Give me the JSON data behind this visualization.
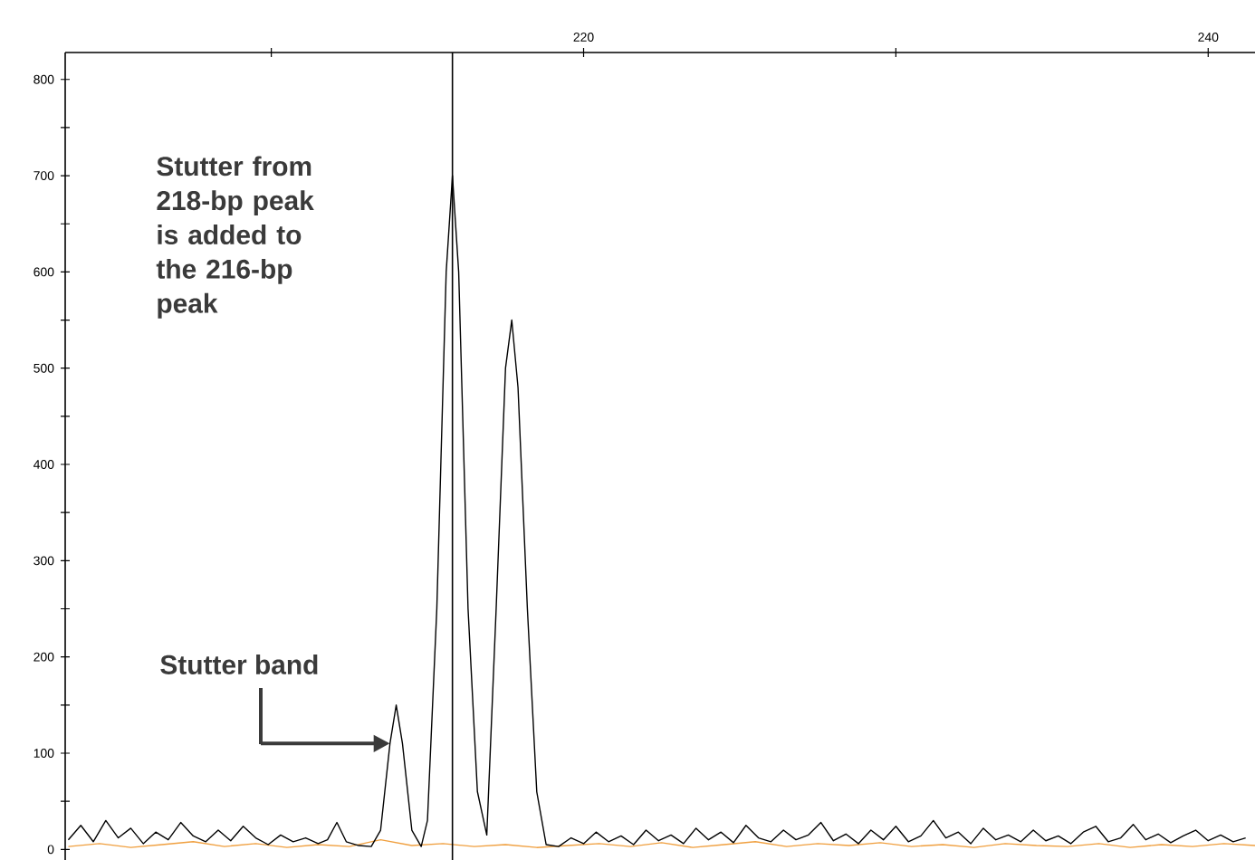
{
  "chart_data": {
    "type": "line",
    "xlim": [
      203.4,
      241.5
    ],
    "ylim": [
      -11,
      828
    ],
    "xticks": [
      {
        "value": 210,
        "label": null
      },
      220,
      {
        "value": 230,
        "label": null
      },
      240
    ],
    "yticks": [
      0,
      {
        "value": 50,
        "label": null
      },
      100,
      {
        "value": 150,
        "label": null
      },
      200,
      {
        "value": 250,
        "label": null
      },
      300,
      {
        "value": 350,
        "label": null
      },
      400,
      {
        "value": 450,
        "label": null
      },
      500,
      {
        "value": 550,
        "label": null
      },
      600,
      {
        "value": 650,
        "label": null
      },
      700,
      {
        "value": 750,
        "label": null
      },
      800
    ],
    "grid": false,
    "marker": "none",
    "line_style": "solid",
    "ref_lines": [
      {
        "axis": "x",
        "value": 215.8,
        "color": "#000000"
      }
    ],
    "annotations": [
      "Stutter from 218-bp peak is added to the 216-bp peak",
      {
        "text": "Stutter band",
        "x": 213.8,
        "y": 110
      }
    ],
    "series": [
      {
        "color": "#f0a040",
        "x": [
          203.5,
          204.5,
          205.5,
          206.5,
          207.5,
          208.5,
          209.5,
          210.5,
          211.5,
          212.5,
          213.5,
          214.5,
          215.5,
          216.5,
          217.5,
          218.5,
          219.5,
          220.5,
          221.5,
          222.5,
          223.5,
          224.5,
          225.5,
          226.5,
          227.5,
          228.5,
          229.5,
          230.5,
          231.5,
          232.5,
          233.5,
          234.5,
          235.5,
          236.5,
          237.5,
          238.5,
          239.5,
          240.5,
          241.5
        ],
        "values": [
          3,
          6,
          2,
          5,
          8,
          3,
          6,
          2,
          5,
          3,
          10,
          4,
          6,
          3,
          5,
          2,
          4,
          6,
          3,
          7,
          2,
          5,
          8,
          3,
          6,
          4,
          7,
          3,
          5,
          2,
          6,
          4,
          3,
          6,
          2,
          5,
          3,
          6,
          4
        ]
      },
      {
        "color": "#000000",
        "x": [
          203.5,
          203.9,
          204.3,
          204.7,
          205.1,
          205.5,
          205.9,
          206.3,
          206.7,
          207.1,
          207.5,
          207.9,
          208.3,
          208.7,
          209.1,
          209.5,
          209.9,
          210.3,
          210.7,
          211.1,
          211.5,
          211.8,
          212.1,
          212.4,
          212.8,
          213.2,
          213.5,
          213.8,
          214.0,
          214.2,
          214.5,
          214.8,
          215.0,
          215.3,
          215.6,
          215.8,
          216.0,
          216.3,
          216.6,
          216.9,
          217.2,
          217.5,
          217.7,
          217.9,
          218.2,
          218.5,
          218.8,
          219.2,
          219.6,
          220.0,
          220.4,
          220.8,
          221.2,
          221.6,
          222.0,
          222.4,
          222.8,
          223.2,
          223.6,
          224.0,
          224.4,
          224.8,
          225.2,
          225.6,
          226.0,
          226.4,
          226.8,
          227.2,
          227.6,
          228.0,
          228.4,
          228.8,
          229.2,
          229.6,
          230.0,
          230.4,
          230.8,
          231.2,
          231.6,
          232.0,
          232.4,
          232.8,
          233.2,
          233.6,
          234.0,
          234.4,
          234.8,
          235.2,
          235.6,
          236.0,
          236.4,
          236.8,
          237.2,
          237.6,
          238.0,
          238.4,
          238.8,
          239.2,
          239.6,
          240.0,
          240.4,
          240.8,
          241.2
        ],
        "values": [
          10,
          25,
          8,
          30,
          12,
          22,
          6,
          18,
          10,
          28,
          14,
          8,
          20,
          9,
          24,
          12,
          5,
          15,
          8,
          12,
          6,
          10,
          28,
          8,
          4,
          3,
          20,
          110,
          150,
          110,
          20,
          3,
          30,
          250,
          600,
          700,
          600,
          250,
          60,
          15,
          250,
          500,
          550,
          480,
          250,
          60,
          5,
          3,
          12,
          6,
          18,
          8,
          14,
          5,
          20,
          9,
          15,
          6,
          22,
          10,
          18,
          7,
          25,
          12,
          8,
          20,
          10,
          15,
          28,
          9,
          16,
          6,
          20,
          10,
          24,
          8,
          14,
          30,
          12,
          18,
          6,
          22,
          10,
          15,
          8,
          20,
          9,
          14,
          6,
          18,
          24,
          8,
          12,
          26,
          10,
          16,
          7,
          14,
          20,
          9,
          15,
          8,
          12
        ]
      }
    ]
  }
}
